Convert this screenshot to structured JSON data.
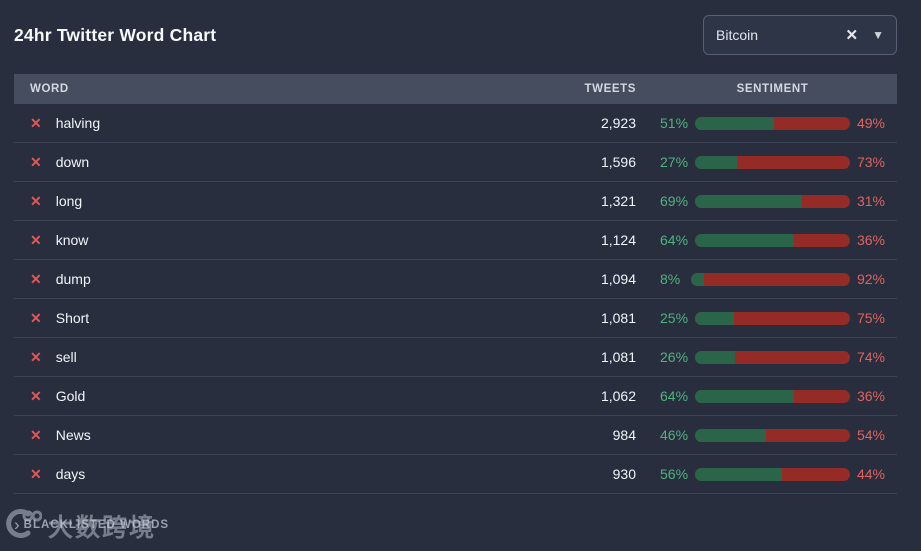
{
  "title": "24hr Twitter Word Chart",
  "filter": {
    "value": "Bitcoin",
    "clear_icon": "✕",
    "caret_icon": "▼"
  },
  "table": {
    "columns": {
      "word": "WORD",
      "tweets": "TWEETS",
      "sentiment": "SENTIMENT"
    },
    "remove_icon": "✕",
    "rows": [
      {
        "word": "halving",
        "tweets": "2,923",
        "positive": 51,
        "negative": 49
      },
      {
        "word": "down",
        "tweets": "1,596",
        "positive": 27,
        "negative": 73
      },
      {
        "word": "long",
        "tweets": "1,321",
        "positive": 69,
        "negative": 31
      },
      {
        "word": "know",
        "tweets": "1,124",
        "positive": 64,
        "negative": 36
      },
      {
        "word": "dump",
        "tweets": "1,094",
        "positive": 8,
        "negative": 92
      },
      {
        "word": "Short",
        "tweets": "1,081",
        "positive": 25,
        "negative": 75
      },
      {
        "word": "sell",
        "tweets": "1,081",
        "positive": 26,
        "negative": 74
      },
      {
        "word": "Gold",
        "tweets": "1,062",
        "positive": 64,
        "negative": 36
      },
      {
        "word": "News",
        "tweets": "984",
        "positive": 46,
        "negative": 54
      },
      {
        "word": "days",
        "tweets": "930",
        "positive": 56,
        "negative": 44
      }
    ]
  },
  "footer": {
    "chevron_icon": "›",
    "blacklisted_label": "BLACKLISTED WORDS"
  },
  "watermark": {
    "text": "大数跨境"
  },
  "colors": {
    "background": "#282e3e",
    "header_row": "#454d5f",
    "bar_positive": "#2a6549",
    "bar_negative": "#952b27",
    "label_positive": "#4fb37d",
    "label_negative": "#e0635d",
    "remove_icon": "#e25757"
  }
}
